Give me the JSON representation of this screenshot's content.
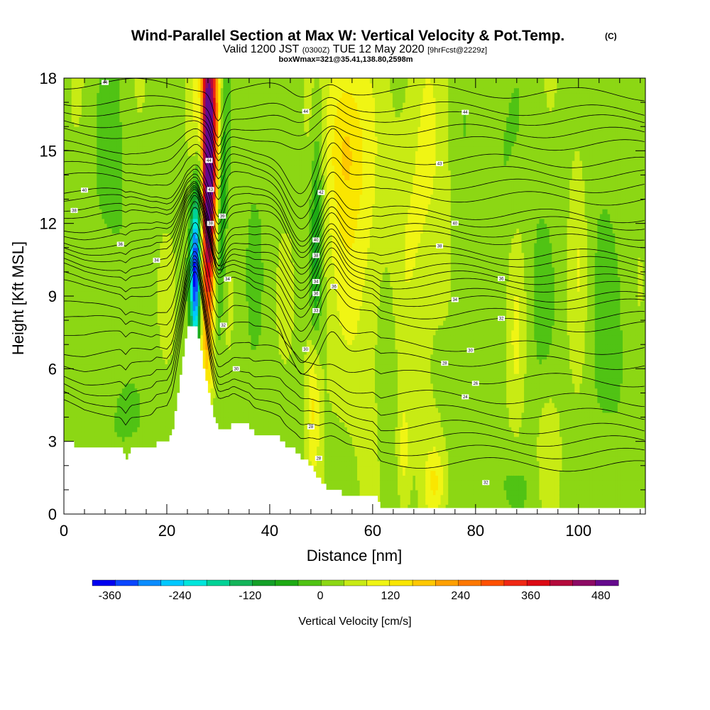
{
  "chart_data": {
    "type": "heatmap",
    "title": "Wind-Parallel Section at Max W: Vertical Velocity & Pot.Temp.",
    "title_mark": "(C)",
    "subtitle_prefix": "Valid 1200 JST",
    "subtitle_utc": "(0300Z)",
    "subtitle_date": "TUE 12 May 2020",
    "subtitle_fcst": "[9hrFcst@2229z]",
    "subtitle2": "boxWmax=321@35.41,138.80,2598m",
    "xlabel": "Distance [nm]",
    "ylabel": "Height [Kft MSL]",
    "xlim": [
      0,
      113
    ],
    "ylim": [
      0,
      18
    ],
    "x_ticks": [
      "0",
      "20",
      "40",
      "60",
      "80",
      "100"
    ],
    "y_ticks": [
      "0",
      "3",
      "6",
      "9",
      "12",
      "15",
      "18"
    ],
    "colorbar": {
      "label": "Vertical Velocity [cm/s]",
      "min": -390,
      "max": 510,
      "tick_labels": [
        "-360",
        "-240",
        "-120",
        "0",
        "120",
        "240",
        "360",
        "480"
      ],
      "colors": [
        "#0000f0",
        "#0a46ff",
        "#0a8cff",
        "#00c8ff",
        "#00e6dc",
        "#00d296",
        "#14b45a",
        "#14a028",
        "#1eaa14",
        "#50c314",
        "#8cd714",
        "#c8eb14",
        "#f0f514",
        "#fae600",
        "#ffc800",
        "#ffa000",
        "#ff7800",
        "#ff5000",
        "#f02814",
        "#dc0a14",
        "#b40a3c",
        "#8c0a64",
        "#640a8c"
      ]
    },
    "terrain": [
      [
        0,
        3.0
      ],
      [
        4,
        2.7
      ],
      [
        11,
        2.7
      ],
      [
        12,
        2.3
      ],
      [
        13,
        2.7
      ],
      [
        17,
        2.7
      ],
      [
        18,
        3.0
      ],
      [
        20,
        3.0
      ],
      [
        21,
        3.5
      ],
      [
        22,
        5.0
      ],
      [
        23,
        6.5
      ],
      [
        23.8,
        7.8
      ],
      [
        25.3,
        7.8
      ],
      [
        26,
        7.3
      ],
      [
        27,
        6.0
      ],
      [
        28,
        5.0
      ],
      [
        29,
        4.0
      ],
      [
        30,
        3.6
      ],
      [
        32,
        3.6
      ],
      [
        33,
        3.8
      ],
      [
        36,
        3.6
      ],
      [
        37,
        3.3
      ],
      [
        40,
        3.2
      ],
      [
        42,
        3.1
      ],
      [
        43,
        2.8
      ],
      [
        45,
        2.6
      ],
      [
        46,
        2.3
      ],
      [
        47.5,
        2.1
      ],
      [
        48.5,
        1.8
      ],
      [
        49.5,
        1.4
      ],
      [
        51,
        1.1
      ],
      [
        53,
        0.9
      ],
      [
        55,
        0.8
      ],
      [
        60,
        0.8
      ],
      [
        61,
        0.5
      ],
      [
        61.5,
        0.3
      ],
      [
        113,
        0.3
      ]
    ],
    "background_value": 30,
    "w_features": [
      {
        "x": 28,
        "y": 12.5,
        "sx": 1.1,
        "sy": 4.5,
        "value": 390,
        "tilt": 0.03
      },
      {
        "x": 28,
        "y": 16.5,
        "sx": 1.5,
        "sy": 3.0,
        "value": 280,
        "tilt": 0.0
      },
      {
        "x": 25.5,
        "y": 10.0,
        "sx": 0.7,
        "sy": 2.2,
        "value": -400,
        "tilt": 0.0
      },
      {
        "x": 26.5,
        "y": 14.0,
        "sx": 0.6,
        "sy": 3.5,
        "value": -200,
        "tilt": 0.0
      },
      {
        "x": 30.5,
        "y": 12.0,
        "sx": 0.8,
        "sy": 4.0,
        "value": -140,
        "tilt": 0.15
      },
      {
        "x": 49,
        "y": 11.0,
        "sx": 0.8,
        "sy": 4.0,
        "value": -110,
        "tilt": 0.05
      },
      {
        "x": 54.5,
        "y": 15.5,
        "sx": 2.5,
        "sy": 2.8,
        "value": 110,
        "tilt": 0.0
      },
      {
        "x": 48.5,
        "y": 5.0,
        "sx": 0.9,
        "sy": 2.2,
        "value": 120,
        "tilt": 0.0
      },
      {
        "x": 58,
        "y": 11.0,
        "sx": 4.5,
        "sy": 5.0,
        "value": 60,
        "tilt": 0.0
      },
      {
        "x": 70,
        "y": 13.0,
        "sx": 3.5,
        "sy": 5.0,
        "value": 55,
        "tilt": 0.0
      },
      {
        "x": 9,
        "y": 13.0,
        "sx": 3.0,
        "sy": 5.0,
        "value": -40,
        "tilt": 0.0
      },
      {
        "x": 13,
        "y": 4.0,
        "sx": 2.5,
        "sy": 1.2,
        "value": -40,
        "tilt": 0.0
      },
      {
        "x": 37,
        "y": 12.0,
        "sx": 2.0,
        "sy": 5.5,
        "value": -25,
        "tilt": 0.0
      },
      {
        "x": 63,
        "y": 7.0,
        "sx": 1.6,
        "sy": 4.0,
        "value": -40,
        "tilt": 0.0
      },
      {
        "x": 78,
        "y": 10.0,
        "sx": 2.0,
        "sy": 5.5,
        "value": -35,
        "tilt": 0.0
      },
      {
        "x": 92,
        "y": 9.0,
        "sx": 2.5,
        "sy": 5.0,
        "value": -30,
        "tilt": 0.0
      },
      {
        "x": 106,
        "y": 6.0,
        "sx": 3.5,
        "sy": 3.5,
        "value": -35,
        "tilt": 0.0
      },
      {
        "x": 85,
        "y": 15.0,
        "sx": 2.5,
        "sy": 3.0,
        "value": -30,
        "tilt": 0.0
      },
      {
        "x": 104,
        "y": 14.0,
        "sx": 3.0,
        "sy": 4.0,
        "value": -20,
        "tilt": 0.0
      },
      {
        "x": 86,
        "y": 1.2,
        "sx": 3.0,
        "sy": 1.0,
        "value": -30,
        "tilt": 0.0
      },
      {
        "x": 72,
        "y": 1.4,
        "sx": 1.5,
        "sy": 1.0,
        "value": 80,
        "tilt": 0.0
      },
      {
        "x": 88,
        "y": 7.0,
        "sx": 1.2,
        "sy": 3.0,
        "value": 55,
        "tilt": 0.0
      },
      {
        "x": 100,
        "y": 11.0,
        "sx": 1.2,
        "sy": 4.0,
        "value": 45,
        "tilt": 0.0
      },
      {
        "x": 66,
        "y": 2.5,
        "sx": 1.0,
        "sy": 1.8,
        "value": 70,
        "tilt": 0.0
      },
      {
        "x": 94,
        "y": 3.0,
        "sx": 1.5,
        "sy": 1.5,
        "value": 50,
        "tilt": 0.0
      }
    ],
    "contours": [
      {
        "label": "44",
        "base": 17.3,
        "label_x": 8
      },
      {
        "label": "44",
        "base": 16.6,
        "label_x": 47
      },
      {
        "label": "44",
        "base": 16.2,
        "label_x": 78
      },
      {
        "label": "",
        "base": 15.7
      },
      {
        "label": "",
        "base": 15.2
      },
      {
        "label": "43",
        "base": 14.5,
        "label_x": 73
      },
      {
        "label": "",
        "base": 14.0
      },
      {
        "label": "",
        "base": 13.5
      },
      {
        "label": "42",
        "base": 13.0,
        "label_x": 50
      },
      {
        "label": "40",
        "base": 12.3,
        "label_x": 4
      },
      {
        "label": "40",
        "base": 12.0,
        "label_x": 76
      },
      {
        "label": "38",
        "base": 11.6,
        "label_x": 2
      },
      {
        "label": "40",
        "base": 11.3,
        "label_x": 49
      },
      {
        "label": "38",
        "base": 10.7,
        "label_x": 73
      },
      {
        "label": "38",
        "base": 10.4,
        "label_x": 49
      },
      {
        "label": "36",
        "base": 10.0,
        "label_x": 11
      },
      {
        "label": "36",
        "base": 9.7,
        "label_x": 85
      },
      {
        "label": "",
        "base": 9.4
      },
      {
        "label": "34",
        "base": 9.0,
        "label_x": 18
      },
      {
        "label": "34",
        "base": 8.7,
        "label_x": 76
      },
      {
        "label": "",
        "base": 8.2
      },
      {
        "label": "32",
        "base": 7.8,
        "label_x": 85
      },
      {
        "label": "30",
        "base": 6.9,
        "label_x": 79
      },
      {
        "label": "28",
        "base": 6.3,
        "label_x": 74
      },
      {
        "label": "26",
        "base": 5.6,
        "label_x": 80
      },
      {
        "label": "24",
        "base": 4.8,
        "label_x": 78
      },
      {
        "label": "",
        "base": 4.2
      },
      {
        "label": "",
        "base": 3.6
      },
      {
        "label": "",
        "base": 3.1
      },
      {
        "label": "",
        "base": 2.6
      },
      {
        "label": "",
        "base": 2.1
      }
    ],
    "extra_contour_labels": [
      {
        "label": "44",
        "x": 28.2,
        "y": 14.6
      },
      {
        "label": "43",
        "x": 28.5,
        "y": 13.4
      },
      {
        "label": "39",
        "x": 30.8,
        "y": 12.3
      },
      {
        "label": "38",
        "x": 28.5,
        "y": 12.0
      },
      {
        "label": "34",
        "x": 31.8,
        "y": 9.7
      },
      {
        "label": "32",
        "x": 31.0,
        "y": 7.8
      },
      {
        "label": "30",
        "x": 33.5,
        "y": 6.0
      },
      {
        "label": "34",
        "x": 49.0,
        "y": 9.6
      },
      {
        "label": "36",
        "x": 52.5,
        "y": 9.4
      },
      {
        "label": "36",
        "x": 49.0,
        "y": 9.1
      },
      {
        "label": "33",
        "x": 49.0,
        "y": 8.4
      },
      {
        "label": "30",
        "x": 47.0,
        "y": 6.8
      },
      {
        "label": "28",
        "x": 48.0,
        "y": 3.6
      },
      {
        "label": "28",
        "x": 49.5,
        "y": 2.3
      },
      {
        "label": "32",
        "x": 82.0,
        "y": 1.3
      }
    ]
  }
}
